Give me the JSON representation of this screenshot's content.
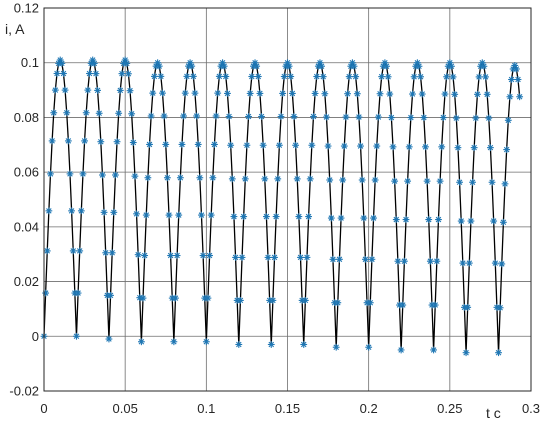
{
  "chart_data": {
    "type": "line",
    "title": "",
    "xlabel": "t c",
    "ylabel": "i, A",
    "xlim": [
      0,
      0.3
    ],
    "ylim": [
      -0.02,
      0.12
    ],
    "xticks": [
      0,
      0.05,
      0.1,
      0.15,
      0.2,
      0.25,
      0.3
    ],
    "yticks": [
      -0.02,
      0,
      0.02,
      0.04,
      0.06,
      0.08,
      0.1,
      0.12
    ],
    "xtick_labels": [
      "0",
      "0.05",
      "0.1",
      "0.15",
      "0.2",
      "0.25",
      "0.3"
    ],
    "ytick_labels": [
      "-0.02",
      "0",
      "0.02",
      "0.04",
      "0.06",
      "0.08",
      "0.1",
      "0.12"
    ],
    "grid": true,
    "legend": "none",
    "x_range": [
      0,
      0.293
    ],
    "sample_step": 0.001,
    "series": [
      {
        "kind": "line",
        "color": "#000000",
        "peak_times": [
          0.01,
          0.03,
          0.05,
          0.07,
          0.09,
          0.11,
          0.13,
          0.15,
          0.17,
          0.19,
          0.21,
          0.23,
          0.25,
          0.27,
          0.29
        ],
        "peak_values": [
          0.101,
          0.101,
          0.101,
          0.1,
          0.1,
          0.1,
          0.1,
          0.1,
          0.1,
          0.1,
          0.1,
          0.1,
          0.1,
          0.1,
          0.099
        ],
        "trough_times": [
          0,
          0.02,
          0.04,
          0.06,
          0.08,
          0.1,
          0.12,
          0.14,
          0.16,
          0.18,
          0.2,
          0.22,
          0.24,
          0.26,
          0.28
        ],
        "trough_values": [
          0,
          0,
          -0.001,
          -0.002,
          -0.002,
          -0.002,
          -0.003,
          -0.003,
          -0.003,
          -0.004,
          -0.004,
          -0.005,
          -0.005,
          -0.006,
          -0.006
        ]
      },
      {
        "kind": "markers",
        "marker": "asterisk",
        "color": "#1f77b4",
        "same_data_as": "line"
      }
    ]
  }
}
